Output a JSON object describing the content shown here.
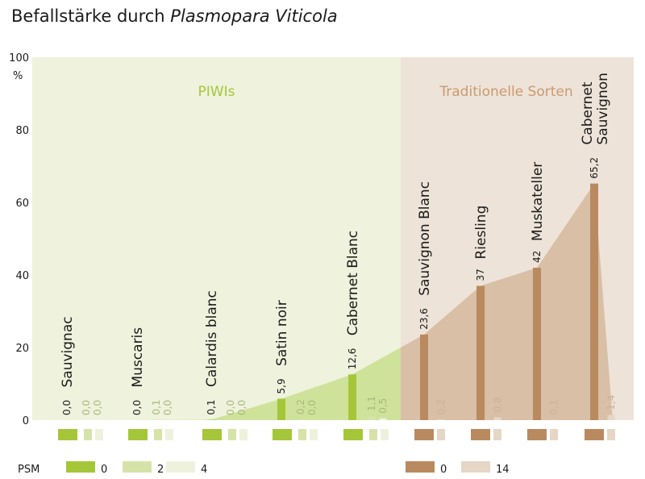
{
  "title": {
    "main": "Befallstärke durch ",
    "italic": "Plasmopara Viticola"
  },
  "colors": {
    "piwi_bg": "#eff2dc",
    "trad_bg": "#eee3d8",
    "piwi_area": "#cfe29a",
    "trad_area": "#d8bfa6",
    "psm0_piwi": "#a6c63a",
    "psm2_piwi": "#d6e3a8",
    "psm4_piwi": "#eef2dc",
    "psm0_trad": "#b98a5f",
    "psm14_trad": "#e6d6c6",
    "group_piwi_text": "#a6c63a",
    "group_trad_text": "#c99a70",
    "value_light_piwi": "#a8b87a",
    "value_light_trad": "#c9b2a0"
  },
  "chart_data": {
    "type": "bar",
    "y_unit": "%",
    "ylim": [
      0,
      100
    ],
    "yticks": [
      "0",
      "20",
      "40",
      "60",
      "80",
      "100"
    ],
    "groups": [
      {
        "label": "PIWIs",
        "category_count": 5
      },
      {
        "label": "Traditionelle Sorten",
        "category_count": 4
      }
    ],
    "categories": [
      {
        "name": [
          "Sauvignac"
        ],
        "group": "PIWIs",
        "values": [
          0.0,
          0.0,
          0.0
        ],
        "labels": [
          "0,0",
          "0,0",
          "0,0"
        ]
      },
      {
        "name": [
          "Muscaris"
        ],
        "group": "PIWIs",
        "values": [
          0.0,
          0.1,
          0.0
        ],
        "labels": [
          "0,0",
          "0,1",
          "0,0"
        ]
      },
      {
        "name": [
          "Calardis blanc"
        ],
        "group": "PIWIs",
        "values": [
          0.1,
          0.0,
          0.0
        ],
        "labels": [
          "0,1",
          "0,0",
          "0,0"
        ]
      },
      {
        "name": [
          "Satin noir"
        ],
        "group": "PIWIs",
        "values": [
          5.9,
          0.2,
          0.0
        ],
        "labels": [
          "5,9",
          "0,2",
          "0,0"
        ]
      },
      {
        "name": [
          "Cabernet Blanc"
        ],
        "group": "PIWIs",
        "values": [
          12.6,
          1.1,
          0.5
        ],
        "labels": [
          "12,6",
          "1,1",
          "0,5"
        ]
      },
      {
        "name": [
          "Sauvignon Blanc"
        ],
        "group": "Traditionelle Sorten",
        "values": [
          23.6,
          0.2
        ],
        "labels": [
          "23,6",
          "0,2"
        ]
      },
      {
        "name": [
          "Riesling"
        ],
        "group": "Traditionelle Sorten",
        "values": [
          37,
          0.8
        ],
        "labels": [
          "37",
          "0,8"
        ]
      },
      {
        "name": [
          "Muskateller"
        ],
        "group": "Traditionelle Sorten",
        "values": [
          42,
          0.1
        ],
        "labels": [
          "42",
          "0,1"
        ]
      },
      {
        "name": [
          "Cabernet",
          "Sauvignon"
        ],
        "group": "Traditionelle Sorten",
        "values": [
          65.2,
          1.4
        ],
        "labels": [
          "65,2",
          "1,4"
        ]
      }
    ],
    "series_piwi": [
      {
        "name": "0"
      },
      {
        "name": "2"
      },
      {
        "name": "4"
      }
    ],
    "series_trad": [
      {
        "name": "0"
      },
      {
        "name": "14"
      }
    ],
    "legend": {
      "title": "PSM",
      "placement": "bottom"
    }
  }
}
